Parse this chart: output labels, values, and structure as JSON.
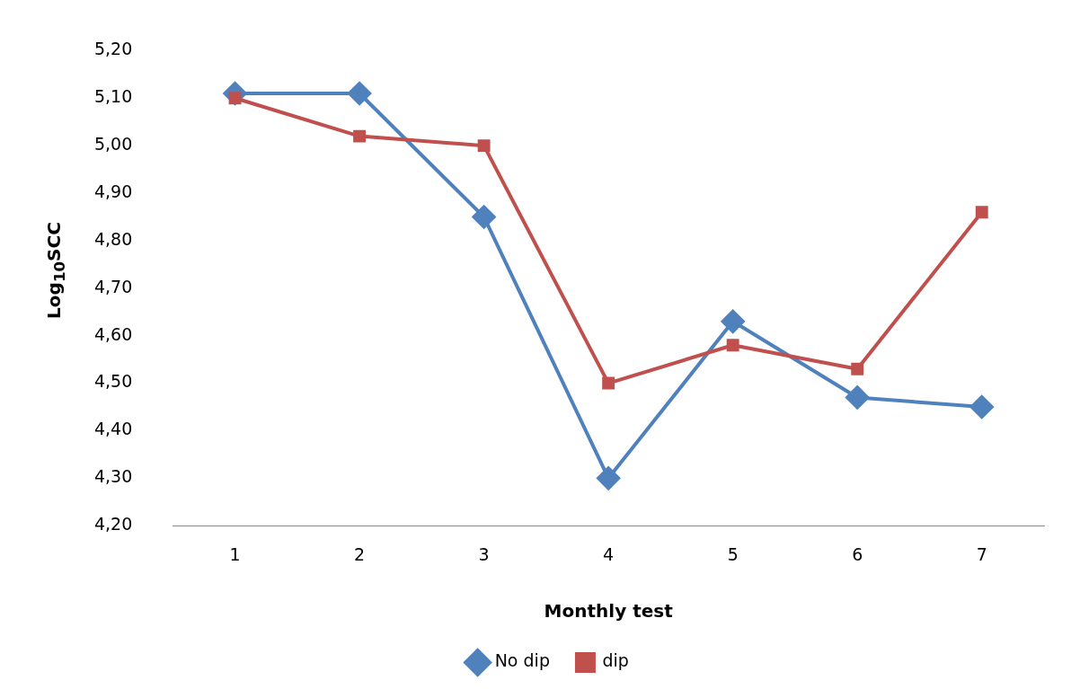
{
  "chart_data": {
    "type": "line",
    "xlabel": "Monthly test",
    "ylabel": "Log$_{10}$SCC",
    "categories": [
      "1",
      "2",
      "3",
      "4",
      "5",
      "6",
      "7"
    ],
    "series": [
      {
        "name": "No dip",
        "color": "#4f81bd",
        "marker": "diamond",
        "values": [
          5.11,
          5.11,
          4.85,
          4.3,
          4.63,
          4.47,
          4.45
        ]
      },
      {
        "name": "dip",
        "color": "#c0504d",
        "marker": "square",
        "values": [
          5.1,
          5.02,
          5.0,
          4.5,
          4.58,
          4.53,
          4.86
        ]
      }
    ],
    "ylim": [
      4.2,
      5.2
    ],
    "yticks": [
      {
        "value": 4.2,
        "label": "4,20"
      },
      {
        "value": 4.3,
        "label": "4,30"
      },
      {
        "value": 4.4,
        "label": "4,40"
      },
      {
        "value": 4.5,
        "label": "4,50"
      },
      {
        "value": 4.6,
        "label": "4,60"
      },
      {
        "value": 4.7,
        "label": "4,70"
      },
      {
        "value": 4.8,
        "label": "4,80"
      },
      {
        "value": 4.9,
        "label": "4,90"
      },
      {
        "value": 5.0,
        "label": "5,00"
      },
      {
        "value": 5.1,
        "label": "5,10"
      },
      {
        "value": 5.2,
        "label": "5,20"
      }
    ],
    "grid": false,
    "legend": "bottom",
    "line_style": "solid"
  }
}
